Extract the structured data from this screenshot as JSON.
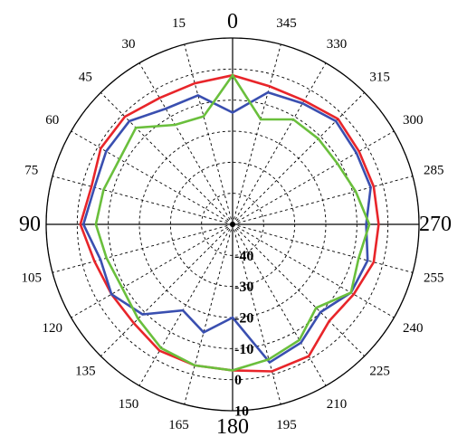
{
  "chart_data": {
    "type": "polar-line",
    "angle_direction": "counterclockwise",
    "angle_zero": "top",
    "angular_ticks": [
      0,
      15,
      30,
      45,
      60,
      75,
      90,
      105,
      120,
      135,
      150,
      165,
      180,
      195,
      210,
      225,
      240,
      255,
      270,
      285,
      300,
      315,
      330,
      345
    ],
    "angular_tick_labels": [
      "0",
      "15",
      "30",
      "45",
      "60",
      "75",
      "90",
      "105",
      "120",
      "135",
      "150",
      "165",
      "180",
      "195",
      "210",
      "225",
      "240",
      "255",
      "270",
      "285",
      "300",
      "315",
      "330",
      "345"
    ],
    "radial_ticks": [
      -40,
      -30,
      -20,
      -10,
      0,
      10
    ],
    "radial_tick_labels": [
      "-40",
      "-30",
      "-20",
      "-10",
      "0",
      "10"
    ],
    "rlim": [
      -50,
      10
    ],
    "grid": true,
    "series": [
      {
        "color": "#e8252a",
        "theta": [
          0,
          15,
          30,
          45,
          60,
          75,
          90,
          105,
          120,
          135,
          150,
          165,
          180,
          195,
          210,
          225,
          240,
          255,
          270,
          285,
          300,
          315,
          330,
          345
        ],
        "values": [
          -2,
          -3,
          -3,
          -1,
          -1,
          -3,
          -1,
          -4,
          -5,
          -5,
          -3,
          -3,
          -3,
          -1,
          -1,
          -6,
          -5,
          -3,
          -3,
          -3,
          -3,
          -2,
          -4,
          -4
        ]
      },
      {
        "color": "#3a4fb0",
        "theta": [
          0,
          15,
          30,
          45,
          60,
          75,
          90,
          105,
          120,
          135,
          150,
          165,
          180,
          195,
          210,
          225,
          240,
          255,
          270,
          285,
          300,
          315,
          330,
          345
        ],
        "values": [
          -14,
          -7,
          -7,
          -3,
          -3,
          -4,
          -2,
          -6,
          -5,
          -9,
          -18,
          -14,
          -20,
          -4,
          -6,
          -10,
          -6,
          -5,
          -7,
          -4,
          -4,
          -3,
          -5,
          -6
        ]
      },
      {
        "color": "#6abf3c",
        "theta": [
          0,
          15,
          30,
          45,
          60,
          75,
          90,
          105,
          120,
          135,
          150,
          165,
          180,
          195,
          210,
          225,
          240,
          255,
          270,
          285,
          300,
          315,
          330,
          345
        ],
        "values": [
          -2,
          -14,
          -13,
          -6,
          -8,
          -7,
          -6,
          -8,
          -9,
          -7,
          -4,
          -3,
          -3,
          -5,
          -7,
          -12,
          -6,
          -8,
          -6,
          -9,
          -11,
          -11,
          -11,
          -15
        ]
      }
    ]
  }
}
